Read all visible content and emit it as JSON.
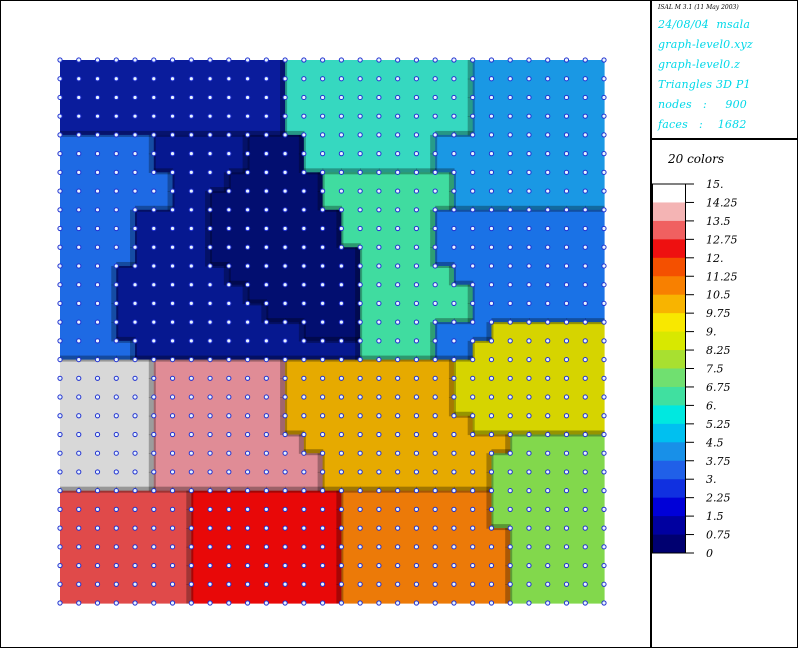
{
  "header": {
    "tag": "ISAL M 3.1 (11 May 2003)",
    "lines": [
      "24/08/04  msala",
      "graph-level0.xyz",
      "graph-level0.z",
      "Triangles 3D P1",
      "nodes   :     900",
      "faces   :    1682"
    ]
  },
  "legend": {
    "title": "20 colors",
    "levels": [
      "15.",
      "14.25",
      "13.5",
      "12.75",
      "12.",
      "11.25",
      "10.5",
      "9.75",
      "9.",
      "8.25",
      "7.5",
      "6.75",
      "6.",
      "5.25",
      "4.5",
      "3.75",
      "3.",
      "2.25",
      "1.5",
      "0.75",
      "0"
    ],
    "colors": [
      "#ffffff",
      "#f4b4b4",
      "#f06060",
      "#ee1010",
      "#f45000",
      "#f88000",
      "#f8b400",
      "#f8e800",
      "#d8e800",
      "#a8e030",
      "#70e070",
      "#40e0a0",
      "#00e8e0",
      "#00c0f0",
      "#1890e8",
      "#2060e8",
      "#1030e0",
      "#0000d8",
      "#0000a0",
      "#000070"
    ]
  },
  "chart_data": {
    "type": "heatmap",
    "title": "",
    "xlabel": "",
    "ylabel": "",
    "grid_nodes": 30,
    "color_range": [
      0,
      15
    ],
    "regions": [
      {
        "name": "top-left",
        "value": 0.8,
        "color": "#0a1c9c"
      },
      {
        "name": "top-middle",
        "value": 6.8,
        "color": "#36d8c0"
      },
      {
        "name": "top-right",
        "value": 5.0,
        "color": "#1a98e4"
      },
      {
        "name": "upper-left",
        "value": 4.0,
        "color": "#1e6ae4"
      },
      {
        "name": "center-left",
        "value": 0.3,
        "color": "#061890"
      },
      {
        "name": "center-deep",
        "value": 0.1,
        "color": "#020e70"
      },
      {
        "name": "center-right-green",
        "value": 6.9,
        "color": "#40dca0"
      },
      {
        "name": "right-mid-blue",
        "value": 4.2,
        "color": "#1a72e6"
      },
      {
        "name": "right-yellow",
        "value": 8.8,
        "color": "#d6d400"
      },
      {
        "name": "bottom-left-white",
        "value": 15.0,
        "color": "#d8d8d8"
      },
      {
        "name": "pink",
        "value": 13.8,
        "color": "#e08c96"
      },
      {
        "name": "center-orange",
        "value": 10.4,
        "color": "#e6aa00"
      },
      {
        "name": "bottom-left-salmon",
        "value": 13.3,
        "color": "#e04a4a"
      },
      {
        "name": "bottom-red",
        "value": 12.4,
        "color": "#e80808"
      },
      {
        "name": "bottom-orange",
        "value": 11.2,
        "color": "#ec7a08"
      },
      {
        "name": "bottom-right-green",
        "value": 7.8,
        "color": "#82d84c"
      }
    ]
  }
}
